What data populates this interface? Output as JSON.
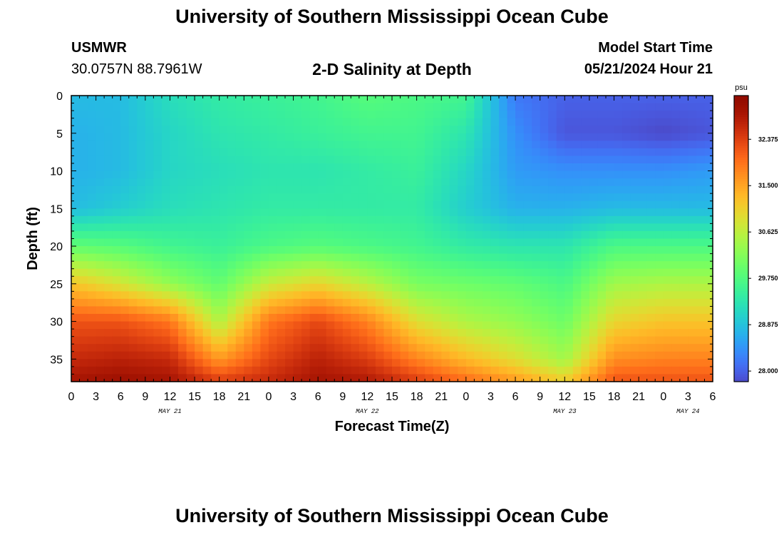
{
  "header": {
    "title": "University of Southern Mississippi Ocean Cube",
    "station_name": "USMWR",
    "station_coords": "30.0757N  88.7961W",
    "plot_title": "2-D Salinity at Depth",
    "model_label": "Model Start Time",
    "model_time": "05/21/2024 Hour 21"
  },
  "footer": {
    "title": "University of Southern Mississippi Ocean Cube"
  },
  "chart_data": {
    "type": "heatmap",
    "title": "2-D Salinity at Depth",
    "xlabel": "Forecast Time(Z)",
    "ylabel": "Depth (ft)",
    "x_ticks": [
      "0",
      "3",
      "6",
      "9",
      "12",
      "15",
      "18",
      "21",
      "0",
      "3",
      "6",
      "9",
      "12",
      "15",
      "18",
      "21",
      "0",
      "3",
      "6",
      "9",
      "12",
      "15",
      "18",
      "21",
      "0",
      "3",
      "6"
    ],
    "x_range_hours": [
      0,
      78
    ],
    "day_labels": [
      {
        "label": "MAY 21",
        "hour": 12
      },
      {
        "label": "MAY 22",
        "hour": 36
      },
      {
        "label": "MAY 23",
        "hour": 60
      },
      {
        "label": "MAY 24",
        "hour": 75
      }
    ],
    "y_ticks": [
      "0",
      "5",
      "10",
      "15",
      "20",
      "25",
      "30",
      "35"
    ],
    "y_range_ft": [
      0,
      38
    ],
    "y_reversed": true,
    "colorbar": {
      "unit": "psu",
      "min": 27.8,
      "max": 33.2,
      "labels": [
        "32.375",
        "31.500",
        "30.625",
        "29.750",
        "28.875",
        "28.000"
      ],
      "label_values": [
        32.375,
        31.5,
        30.625,
        29.75,
        28.875,
        28.0
      ]
    },
    "salinity_grid": {
      "note_hours": [
        0,
        6,
        12,
        18,
        24,
        30,
        36,
        42,
        48,
        54,
        60,
        66,
        72,
        78
      ],
      "depths_ft": [
        0,
        5,
        10,
        15,
        20,
        25,
        30,
        35,
        38
      ],
      "values": [
        [
          28.8,
          28.8,
          29.2,
          29.4,
          29.5,
          29.6,
          29.8,
          29.7,
          29.6,
          28.2,
          28.0,
          28.0,
          28.0,
          28.0
        ],
        [
          28.7,
          28.8,
          29.1,
          29.3,
          29.4,
          29.5,
          29.6,
          29.6,
          29.3,
          28.4,
          27.9,
          27.9,
          27.8,
          27.9
        ],
        [
          28.7,
          28.8,
          29.1,
          29.2,
          29.3,
          29.3,
          29.4,
          29.5,
          29.1,
          28.5,
          28.4,
          28.4,
          28.4,
          28.5
        ],
        [
          28.8,
          29.0,
          29.2,
          29.3,
          29.4,
          29.4,
          29.4,
          29.4,
          29.0,
          28.7,
          28.7,
          28.8,
          28.8,
          28.8
        ],
        [
          29.9,
          29.8,
          29.6,
          29.5,
          29.7,
          29.8,
          29.7,
          29.6,
          29.4,
          29.3,
          29.3,
          29.7,
          29.7,
          29.7
        ],
        [
          31.2,
          30.8,
          30.3,
          29.9,
          30.7,
          31.0,
          30.6,
          30.1,
          30.0,
          29.9,
          29.7,
          30.4,
          30.5,
          30.5
        ],
        [
          32.2,
          32.2,
          31.9,
          30.5,
          31.9,
          32.3,
          31.8,
          30.9,
          30.5,
          30.3,
          30.0,
          31.0,
          31.2,
          31.2
        ],
        [
          32.6,
          32.7,
          32.6,
          31.6,
          32.3,
          32.7,
          32.4,
          31.8,
          31.3,
          30.9,
          30.4,
          31.7,
          31.8,
          31.8
        ],
        [
          32.9,
          33.0,
          32.9,
          32.4,
          32.6,
          32.9,
          32.8,
          32.4,
          32.0,
          31.6,
          31.1,
          32.2,
          32.2,
          32.2
        ]
      ]
    },
    "grid": false
  }
}
